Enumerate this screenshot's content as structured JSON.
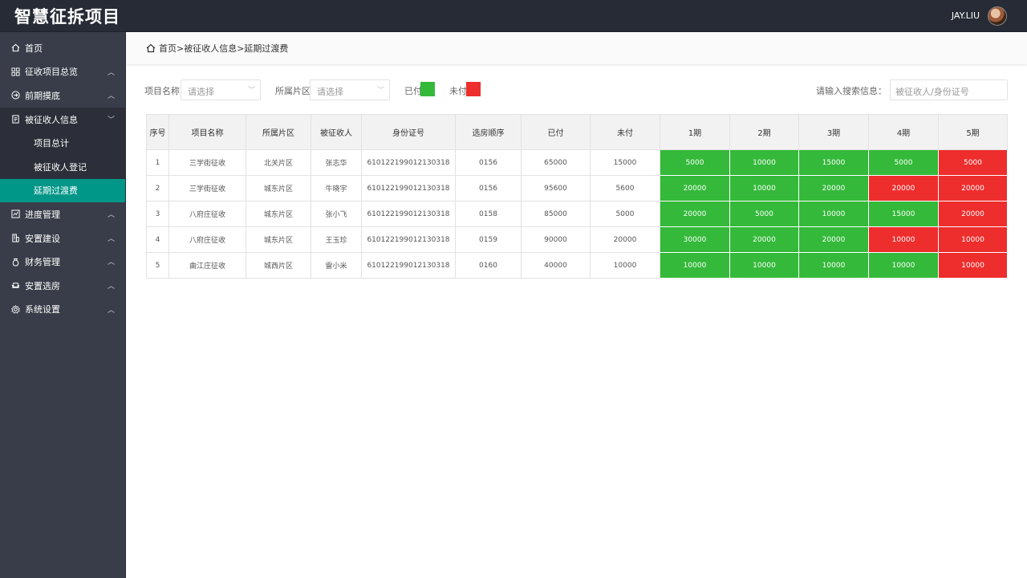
{
  "app": {
    "title": "智慧征拆项目",
    "user": "JAY.LIU"
  },
  "sidebar": {
    "items": [
      {
        "label": "首页",
        "icon": "home-icon"
      },
      {
        "label": "征收项目总览",
        "icon": "grid-icon"
      },
      {
        "label": "前期摸底",
        "icon": "arrow-circle-icon"
      },
      {
        "label": "被征收人信息",
        "icon": "document-icon"
      },
      {
        "label": "进度管理",
        "icon": "progress-icon"
      },
      {
        "label": "安置建设",
        "icon": "building-icon"
      },
      {
        "label": "财务管理",
        "icon": "money-bag-icon"
      },
      {
        "label": "安置选房",
        "icon": "sofa-icon"
      },
      {
        "label": "系统设置",
        "icon": "gear-icon"
      }
    ],
    "subitems": [
      {
        "label": "项目总计"
      },
      {
        "label": "被征收人登记"
      },
      {
        "label": "延期过渡费"
      }
    ]
  },
  "breadcrumb": "首页>被征收人信息>延期过渡费",
  "filters": {
    "project_label": "项目名称:",
    "project_placeholder": "请选择",
    "area_label": "所属片区:",
    "area_placeholder": "请选择",
    "paid_label": "已付",
    "unpaid_label": "未付",
    "search_label": "请输入搜索信息：",
    "search_placeholder": "被征收人/身份证号"
  },
  "colors": {
    "paid": "#34b93a",
    "unpaid": "#ee2d2d",
    "active_nav": "#009688"
  },
  "table": {
    "headers": [
      "序号",
      "项目名称",
      "所属片区",
      "被征收人",
      "身份证号",
      "选房顺序",
      "已付",
      "未付",
      "1期",
      "2期",
      "3期",
      "4期",
      "5期"
    ],
    "rows": [
      {
        "no": "1",
        "project": "三学街征收",
        "area": "北关片区",
        "person": "张志华",
        "id": "610122199012130318",
        "order": "0156",
        "paid": "65000",
        "unpaid": "15000",
        "periods": [
          {
            "v": "5000",
            "s": "paid"
          },
          {
            "v": "10000",
            "s": "paid"
          },
          {
            "v": "15000",
            "s": "paid"
          },
          {
            "v": "5000",
            "s": "paid"
          },
          {
            "v": "5000",
            "s": "unpaid"
          }
        ]
      },
      {
        "no": "2",
        "project": "三学街征收",
        "area": "城东片区",
        "person": "牛晓宇",
        "id": "610122199012130318",
        "order": "0156",
        "paid": "95600",
        "unpaid": "5600",
        "periods": [
          {
            "v": "20000",
            "s": "paid"
          },
          {
            "v": "10000",
            "s": "paid"
          },
          {
            "v": "20000",
            "s": "paid"
          },
          {
            "v": "20000",
            "s": "unpaid"
          },
          {
            "v": "20000",
            "s": "unpaid"
          }
        ]
      },
      {
        "no": "3",
        "project": "八府庄征收",
        "area": "城东片区",
        "person": "张小飞",
        "id": "610122199012130318",
        "order": "0158",
        "paid": "85000",
        "unpaid": "5000",
        "periods": [
          {
            "v": "20000",
            "s": "paid"
          },
          {
            "v": "5000",
            "s": "paid"
          },
          {
            "v": "10000",
            "s": "paid"
          },
          {
            "v": "15000",
            "s": "paid"
          },
          {
            "v": "20000",
            "s": "unpaid"
          }
        ]
      },
      {
        "no": "4",
        "project": "八府庄征收",
        "area": "城东片区",
        "person": "王玉珍",
        "id": "610122199012130318",
        "order": "0159",
        "paid": "90000",
        "unpaid": "20000",
        "periods": [
          {
            "v": "30000",
            "s": "paid"
          },
          {
            "v": "20000",
            "s": "paid"
          },
          {
            "v": "20000",
            "s": "paid"
          },
          {
            "v": "10000",
            "s": "unpaid"
          },
          {
            "v": "10000",
            "s": "unpaid"
          }
        ]
      },
      {
        "no": "5",
        "project": "曲江庄征收",
        "area": "城西片区",
        "person": "雷小米",
        "id": "610122199012130318",
        "order": "0160",
        "paid": "40000",
        "unpaid": "10000",
        "periods": [
          {
            "v": "10000",
            "s": "paid"
          },
          {
            "v": "10000",
            "s": "paid"
          },
          {
            "v": "10000",
            "s": "paid"
          },
          {
            "v": "10000",
            "s": "paid"
          },
          {
            "v": "10000",
            "s": "unpaid"
          }
        ]
      }
    ]
  }
}
